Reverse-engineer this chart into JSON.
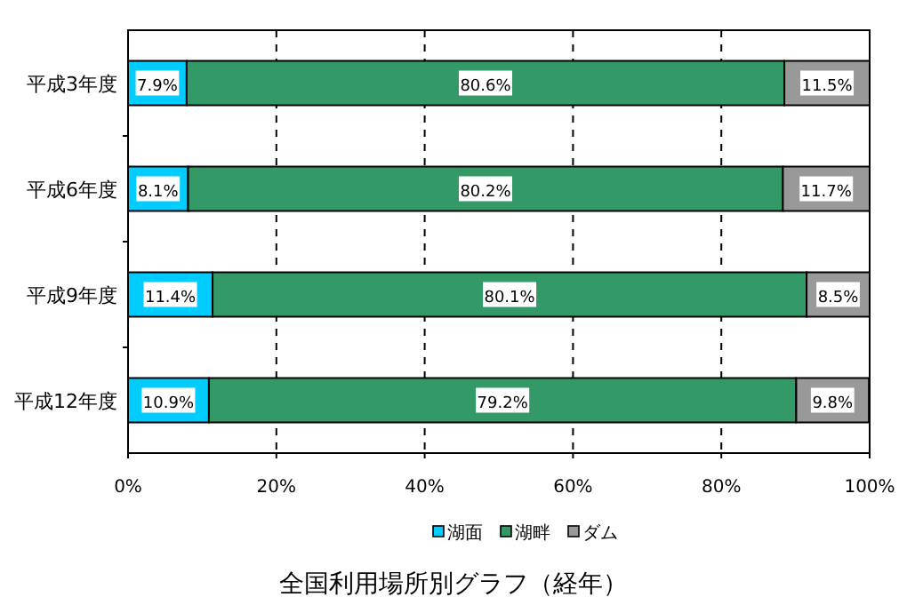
{
  "chart_data": {
    "type": "bar",
    "orientation": "horizontal",
    "stacked": true,
    "title": "全国利用場所別グラフ（経年）",
    "categories": [
      "平成3年度",
      "平成6年度",
      "平成9年度",
      "平成12年度"
    ],
    "series": [
      {
        "name": "湖面",
        "color": "#00ccff",
        "values": [
          7.9,
          8.1,
          11.4,
          10.9
        ],
        "value_labels": [
          "7.9%",
          "8.1%",
          "11.4%",
          "10.9%"
        ]
      },
      {
        "name": "湖畔",
        "color": "#339966",
        "values": [
          80.6,
          80.2,
          80.1,
          79.2
        ],
        "value_labels": [
          "80.6%",
          "80.2%",
          "80.1%",
          "79.2%"
        ]
      },
      {
        "name": "ダム",
        "color": "#999999",
        "values": [
          11.5,
          11.7,
          8.5,
          9.8
        ],
        "value_labels": [
          "11.5%",
          "11.7%",
          "8.5%",
          "9.8%"
        ]
      }
    ],
    "xlim": [
      0,
      100
    ],
    "xticks": [
      {
        "value": 0,
        "label": "0%"
      },
      {
        "value": 20,
        "label": "20%"
      },
      {
        "value": 40,
        "label": "40%"
      },
      {
        "value": 60,
        "label": "60%"
      },
      {
        "value": 80,
        "label": "80%"
      },
      {
        "value": 100,
        "label": "100%"
      }
    ],
    "grid": "x",
    "legend": "bottom"
  }
}
